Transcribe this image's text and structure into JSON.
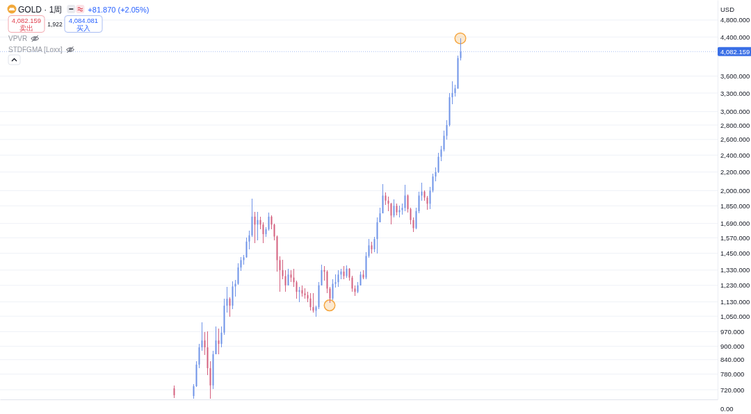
{
  "chart_data": {
    "type": "candlestick",
    "title": "GOLD · 1周",
    "subtitle": "+81.870 (+2.05%)",
    "ylabel": "USD",
    "annotations": [
      "4,082.159",
      "卖出",
      "1,922",
      "4,084.081",
      "买入",
      "VPVR",
      "STDFGMA [Loxx]",
      "0.00"
    ],
    "log": true,
    "grid": "y",
    "tick_labels": "y",
    "marker": "circle",
    "ylim": [
      685,
      5320
    ],
    "yticks": [
      {
        "value": 4800,
        "label": "4,800.000"
      },
      {
        "value": 4400,
        "label": "4,400.000"
      },
      {
        "value": 3600,
        "label": "3,600.000"
      },
      {
        "value": 3300,
        "label": "3,300.000"
      },
      {
        "value": 3000,
        "label": "3,000.000"
      },
      {
        "value": 2800,
        "label": "2,800.000"
      },
      {
        "value": 2600,
        "label": "2,600.000"
      },
      {
        "value": 2400,
        "label": "2,400.000"
      },
      {
        "value": 2200,
        "label": "2,200.000"
      },
      {
        "value": 2000,
        "label": "2,000.000"
      },
      {
        "value": 1850,
        "label": "1,850.000"
      },
      {
        "value": 1690,
        "label": "1,690.000"
      },
      {
        "value": 1570,
        "label": "1,570.000"
      },
      {
        "value": 1450,
        "label": "1,450.000"
      },
      {
        "value": 1330,
        "label": "1,330.000"
      },
      {
        "value": 1230,
        "label": "1,230.000"
      },
      {
        "value": 1130,
        "label": "1,130.000"
      },
      {
        "value": 1050,
        "label": "1,050.000"
      },
      {
        "value": 970,
        "label": "970.000"
      },
      {
        "value": 900,
        "label": "900.000"
      },
      {
        "value": 840,
        "label": "840.000"
      },
      {
        "value": 780,
        "label": "780.000"
      },
      {
        "value": 720,
        "label": "720.000"
      }
    ],
    "ref_lines": [
      {
        "axis": "y",
        "value": 4082.159,
        "label": "4,082.159",
        "color": "#3a6fe6",
        "line_style": "dotted"
      }
    ],
    "categories": [
      null,
      null,
      null,
      null,
      null,
      null,
      null,
      null,
      null,
      null,
      null,
      null,
      null,
      null,
      null,
      null,
      null,
      null,
      null,
      null,
      null,
      null,
      null,
      null,
      null,
      null,
      null,
      null,
      null,
      null,
      null,
      null,
      null,
      null,
      null,
      null,
      null,
      null,
      null,
      null,
      null,
      null,
      null,
      null,
      null,
      null,
      null,
      null,
      null,
      null,
      null,
      null,
      null,
      null,
      null,
      null,
      null,
      null,
      null,
      null,
      null,
      null,
      null,
      null,
      null,
      null,
      null,
      null,
      null,
      null,
      null,
      null,
      null,
      null,
      null,
      null,
      null,
      null,
      null,
      null,
      null,
      null,
      null,
      null,
      null,
      null,
      null,
      null,
      null,
      null,
      null,
      null,
      null,
      null,
      null,
      null,
      null,
      null,
      null,
      null,
      null,
      null,
      null,
      null,
      null,
      null,
      null,
      null,
      null,
      null,
      null,
      null,
      null,
      null,
      null,
      null,
      null,
      null,
      null,
      null,
      null,
      null,
      null,
      null,
      null,
      null,
      null,
      null,
      null,
      null,
      null,
      null,
      null,
      null,
      null,
      null,
      null,
      null,
      null,
      null,
      null,
      null,
      null,
      null,
      null,
      null,
      null,
      null,
      null,
      null,
      null,
      null,
      null,
      null,
      null,
      null,
      null,
      null,
      null,
      null,
      null,
      null,
      null,
      null,
      null,
      null,
      null,
      null,
      null,
      null,
      null,
      null,
      null,
      null,
      null,
      null,
      null,
      null,
      null,
      null,
      null,
      null,
      null,
      null,
      null,
      null,
      null,
      null,
      null,
      null,
      null,
      null,
      null,
      null,
      null,
      null,
      null,
      null,
      null,
      null,
      null,
      null,
      null,
      null,
      null,
      null,
      null,
      null,
      null,
      null,
      null,
      null,
      null,
      null,
      null,
      null,
      null,
      null,
      null,
      null,
      null,
      null,
      null,
      null,
      null,
      null,
      null,
      null,
      null,
      null,
      null,
      null,
      null,
      null,
      null,
      null,
      null,
      null,
      null,
      null,
      null,
      null,
      null,
      null,
      null,
      null,
      null,
      null,
      null,
      null,
      null,
      null,
      null,
      null,
      null,
      null,
      null,
      null
    ],
    "ohlc": [
      null,
      null,
      null,
      null,
      null,
      null,
      null,
      null,
      null,
      null,
      null,
      null,
      null,
      null,
      null,
      null,
      null,
      null,
      null,
      null,
      null,
      null,
      null,
      null,
      null,
      null,
      null,
      null,
      null,
      null,
      null,
      null,
      null,
      null,
      null,
      null,
      null,
      null,
      null,
      null,
      null,
      null,
      null,
      null,
      null,
      null,
      null,
      null,
      null,
      null,
      null,
      null,
      null,
      null,
      null,
      null,
      null,
      null,
      null,
      null,
      null,
      null,
      [
        725,
        735,
        690,
        700
      ],
      null,
      null,
      null,
      null,
      null,
      null,
      [
        697,
        740,
        688,
        733
      ],
      [
        733,
        834,
        730,
        819
      ],
      [
        819,
        911,
        804,
        895
      ],
      [
        895,
        1019,
        879,
        927
      ],
      [
        927,
        968,
        860,
        895
      ],
      [
        895,
        970,
        776,
        804
      ],
      [
        804,
        834,
        688,
        736
      ],
      [
        736,
        879,
        723,
        864
      ],
      [
        864,
        995,
        864,
        927
      ],
      [
        927,
        987,
        864,
        911
      ],
      [
        911,
        995,
        895,
        965
      ],
      [
        965,
        1148,
        954,
        1108
      ],
      [
        1108,
        1220,
        1069,
        1148
      ],
      [
        1148,
        1156,
        1046,
        1108
      ],
      [
        1108,
        1255,
        1088,
        1223
      ],
      [
        1223,
        1265,
        1160,
        1240
      ],
      [
        1240,
        1380,
        1232,
        1348
      ],
      [
        1348,
        1422,
        1324,
        1400
      ],
      [
        1400,
        1440,
        1370,
        1420
      ],
      [
        1420,
        1570,
        1420,
        1540
      ],
      [
        1540,
        1630,
        1480,
        1590
      ],
      [
        1590,
        1920,
        1580,
        1750
      ],
      [
        1750,
        1794,
        1528,
        1680
      ],
      [
        1680,
        1794,
        1550,
        1720
      ],
      [
        1720,
        1750,
        1640,
        1680
      ],
      [
        1680,
        1700,
        1530,
        1600
      ],
      [
        1600,
        1660,
        1580,
        1640
      ],
      [
        1640,
        1790,
        1630,
        1750
      ],
      [
        1750,
        1760,
        1640,
        1680
      ],
      [
        1680,
        1690,
        1550,
        1580
      ],
      [
        1580,
        1590,
        1320,
        1400
      ],
      [
        1400,
        1430,
        1190,
        1330
      ],
      [
        1330,
        1400,
        1270,
        1290
      ],
      [
        1290,
        1330,
        1190,
        1230
      ],
      [
        1230,
        1340,
        1230,
        1300
      ],
      [
        1300,
        1330,
        1250,
        1280
      ],
      [
        1280,
        1340,
        1220,
        1250
      ],
      [
        1250,
        1260,
        1150,
        1190
      ],
      [
        1190,
        1220,
        1130,
        1200
      ],
      [
        1200,
        1230,
        1160,
        1180
      ],
      [
        1180,
        1210,
        1150,
        1170
      ],
      [
        1170,
        1190,
        1130,
        1150
      ],
      [
        1150,
        1180,
        1080,
        1100
      ],
      [
        1100,
        1180,
        1070,
        1080
      ],
      [
        1080,
        1110,
        1046,
        1100
      ],
      [
        1100,
        1250,
        1090,
        1230
      ],
      [
        1230,
        1370,
        1230,
        1330
      ],
      [
        1330,
        1360,
        1260,
        1320
      ],
      [
        1320,
        1330,
        1180,
        1210
      ],
      [
        1210,
        1220,
        1125,
        1150
      ],
      [
        1150,
        1270,
        1140,
        1240
      ],
      [
        1240,
        1300,
        1215,
        1250
      ],
      [
        1250,
        1330,
        1220,
        1300
      ],
      [
        1300,
        1340,
        1270,
        1320
      ],
      [
        1320,
        1360,
        1270,
        1290
      ],
      [
        1290,
        1365,
        1280,
        1340
      ],
      [
        1340,
        1345,
        1260,
        1280
      ],
      [
        1280,
        1290,
        1190,
        1210
      ],
      [
        1210,
        1230,
        1165,
        1190
      ],
      [
        1190,
        1250,
        1180,
        1230
      ],
      [
        1230,
        1320,
        1230,
        1300
      ],
      [
        1300,
        1330,
        1270,
        1280
      ],
      [
        1280,
        1460,
        1270,
        1430
      ],
      [
        1430,
        1560,
        1420,
        1510
      ],
      [
        1510,
        1540,
        1450,
        1480
      ],
      [
        1480,
        1580,
        1460,
        1560
      ],
      [
        1560,
        1740,
        1450,
        1700
      ],
      [
        1700,
        1830,
        1700,
        1780
      ],
      [
        1780,
        2070,
        1780,
        1950
      ],
      [
        1950,
        1980,
        1860,
        1900
      ],
      [
        1900,
        1940,
        1800,
        1870
      ],
      [
        1870,
        1880,
        1680,
        1760
      ],
      [
        1760,
        1910,
        1740,
        1850
      ],
      [
        1850,
        1870,
        1760,
        1790
      ],
      [
        1790,
        1850,
        1740,
        1810
      ],
      [
        1810,
        1870,
        1770,
        1830
      ],
      [
        1830,
        2060,
        1800,
        1950
      ],
      [
        1950,
        1960,
        1790,
        1820
      ],
      [
        1820,
        1830,
        1680,
        1720
      ],
      [
        1720,
        1740,
        1615,
        1650
      ],
      [
        1650,
        1830,
        1640,
        1800
      ],
      [
        1800,
        1990,
        1780,
        1950
      ],
      [
        1950,
        2080,
        1900,
        1990
      ],
      [
        1990,
        2000,
        1900,
        1930
      ],
      [
        1930,
        1950,
        1810,
        1870
      ],
      [
        1870,
        2040,
        1820,
        2000
      ],
      [
        2000,
        2180,
        1980,
        2150
      ],
      [
        2150,
        2250,
        2100,
        2200
      ],
      [
        2200,
        2430,
        2190,
        2380
      ],
      [
        2380,
        2520,
        2330,
        2470
      ],
      [
        2470,
        2720,
        2450,
        2650
      ],
      [
        2650,
        2870,
        2600,
        2800
      ],
      [
        2800,
        3300,
        2780,
        3230
      ],
      [
        3230,
        3500,
        3120,
        3300
      ],
      [
        3300,
        3440,
        3240,
        3380
      ],
      [
        3380,
        4000,
        3370,
        3950
      ],
      [
        3950,
        4380,
        3900,
        4082
      ],
      null,
      null,
      null,
      null,
      null,
      null,
      null,
      null,
      null,
      null,
      null,
      null,
      null,
      null,
      null,
      null,
      null,
      null,
      null,
      null,
      null,
      null,
      null,
      null,
      null,
      null,
      null,
      null,
      null,
      null,
      null,
      null,
      null,
      null,
      null,
      null,
      null,
      null,
      null,
      null,
      null,
      null,
      null,
      null,
      null,
      null,
      null,
      null,
      null,
      null,
      null,
      null,
      null,
      null,
      null,
      null,
      null,
      null,
      null,
      null,
      null,
      null,
      null,
      null,
      null,
      null,
      null,
      null,
      null,
      null,
      null,
      null,
      null,
      null,
      null,
      null,
      null,
      null,
      null,
      null,
      null,
      null,
      null,
      null,
      null,
      null,
      null,
      null,
      null,
      null,
      null,
      null
    ],
    "colors": [
      null,
      null,
      null,
      null,
      null,
      null,
      null,
      null,
      null,
      null,
      null,
      null,
      null,
      null,
      null,
      null,
      null,
      null,
      null,
      null,
      null,
      null,
      null,
      null,
      null,
      null,
      null,
      null,
      null,
      null,
      null,
      null,
      null,
      null,
      null,
      null,
      null,
      null,
      null,
      null,
      null,
      null,
      null,
      null,
      null,
      null,
      null,
      null,
      null,
      null,
      null,
      null,
      null,
      null,
      null,
      null,
      null,
      null,
      null,
      null,
      null,
      null,
      "#d4607e",
      null,
      null,
      null,
      null,
      null,
      null,
      "#6f93e8",
      "#6f93e8",
      "#6f93e8",
      "#6f93e8",
      "#d4607e",
      "#d4607e",
      "#d4607e",
      "#6f93e8",
      "#6f93e8",
      "#d4607e",
      "#6f93e8",
      "#6f93e8",
      "#6f93e8",
      "#d4607e",
      "#6f93e8",
      "#6f93e8",
      "#6f93e8",
      "#6f93e8",
      "#6f93e8",
      "#6f93e8",
      "#6f93e8",
      "#6f93e8",
      "#d4607e",
      "#6f93e8",
      "#d4607e",
      "#d4607e",
      "#6f93e8",
      "#6f93e8",
      "#d4607e",
      "#d4607e",
      "#d4607e",
      "#d4607e",
      "#d4607e",
      "#d4607e",
      "#6f93e8",
      "#d4607e",
      "#d4607e",
      "#d4607e",
      "#6f93e8",
      "#d4607e",
      "#d4607e",
      "#d4607e",
      "#d4607e",
      "#d4607e",
      "#6f93e8",
      "#6f93e8",
      "#6f93e8",
      "#d4607e",
      "#d4607e",
      "#d4607e",
      "#6f93e8",
      "#6f93e8",
      "#6f93e8",
      "#6f93e8",
      "#d4607e",
      "#6f93e8",
      "#d4607e",
      "#d4607e",
      "#d4607e",
      "#6f93e8",
      "#6f93e8",
      "#d4607e",
      "#6f93e8",
      "#6f93e8",
      "#d4607e",
      "#6f93e8",
      "#6f93e8",
      "#6f93e8",
      "#6f93e8",
      "#d4607e",
      "#d4607e",
      "#d4607e",
      "#6f93e8",
      "#d4607e",
      "#6f93e8",
      "#6f93e8",
      "#6f93e8",
      "#d4607e",
      "#d4607e",
      "#d4607e",
      "#6f93e8",
      "#6f93e8",
      "#6f93e8",
      "#d4607e",
      "#d4607e",
      "#6f93e8",
      "#6f93e8",
      "#6f93e8",
      "#6f93e8",
      "#6f93e8",
      "#6f93e8",
      "#6f93e8",
      "#6f93e8",
      "#6f93e8",
      "#6f93e8",
      "#6f93e8",
      "#6f93e8",
      null,
      null,
      null,
      null,
      null,
      null,
      null,
      null,
      null,
      null,
      null,
      null,
      null,
      null,
      null,
      null,
      null,
      null,
      null,
      null,
      null,
      null,
      null,
      null,
      null,
      null,
      null,
      null,
      null,
      null,
      null,
      null,
      null,
      null,
      null,
      null,
      null,
      null,
      null,
      null,
      null,
      null,
      null,
      null,
      null,
      null,
      null,
      null,
      null,
      null,
      null,
      null,
      null,
      null,
      null,
      null,
      null,
      null,
      null,
      null,
      null,
      null,
      null,
      null,
      null,
      null,
      null,
      null,
      null,
      null,
      null,
      null,
      null,
      null,
      null,
      null,
      null,
      null,
      null,
      null,
      null,
      null,
      null,
      null,
      null,
      null,
      null,
      null,
      null,
      null,
      null,
      null
    ],
    "series": [
      {
        "type": "scatter",
        "color": "#f5a742",
        "values": [
          null,
          null,
          null,
          null,
          null,
          null,
          null,
          null,
          null,
          null,
          null,
          null,
          null,
          null,
          null,
          null,
          null,
          null,
          null,
          null,
          null,
          null,
          null,
          null,
          null,
          null,
          null,
          null,
          null,
          null,
          null,
          null,
          null,
          null,
          null,
          null,
          null,
          null,
          null,
          null,
          null,
          null,
          null,
          null,
          null,
          null,
          null,
          null,
          null,
          null,
          null,
          null,
          null,
          null,
          null,
          null,
          null,
          null,
          null,
          null,
          null,
          null,
          null,
          null,
          null,
          null,
          null,
          null,
          null,
          null,
          null,
          null,
          null,
          null,
          null,
          null,
          null,
          null,
          null,
          null,
          null,
          null,
          null,
          null,
          null,
          null,
          null,
          null,
          null,
          null,
          null,
          null,
          null,
          null,
          null,
          null,
          null,
          null,
          null,
          null,
          null,
          null,
          null,
          null,
          null,
          null,
          null,
          null,
          null,
          null,
          null,
          null,
          null,
          null,
          null,
          null,
          null,
          null,
          1110,
          null,
          null,
          null,
          null,
          null,
          null,
          null,
          null,
          null,
          null,
          null,
          null,
          null,
          null,
          null,
          null,
          null,
          null,
          null,
          null,
          null,
          null,
          null,
          null,
          null,
          null,
          null,
          null,
          null,
          null,
          null,
          null,
          null,
          null,
          null,
          null,
          null,
          null,
          null,
          null,
          null,
          null,
          null,
          null,
          null,
          null,
          4370,
          null,
          null,
          null,
          null,
          null,
          null,
          null,
          null,
          null,
          null,
          null,
          null,
          null,
          null,
          null,
          null,
          null,
          null,
          null,
          null,
          null,
          null,
          null,
          null,
          null,
          null,
          null,
          null,
          null,
          null,
          null,
          null,
          null,
          null,
          null,
          null,
          null,
          null,
          null,
          null,
          null,
          null,
          null,
          null,
          null,
          null,
          null,
          null,
          null,
          null,
          null,
          null,
          null,
          null,
          null,
          null,
          null,
          null,
          null,
          null,
          null,
          null,
          null,
          null,
          null,
          null,
          null,
          null,
          null,
          null,
          null,
          null,
          null,
          null,
          null,
          null,
          null,
          null,
          null,
          null,
          null,
          null,
          null,
          null,
          null,
          null,
          null,
          null,
          null,
          null,
          null,
          null
        ]
      }
    ]
  }
}
